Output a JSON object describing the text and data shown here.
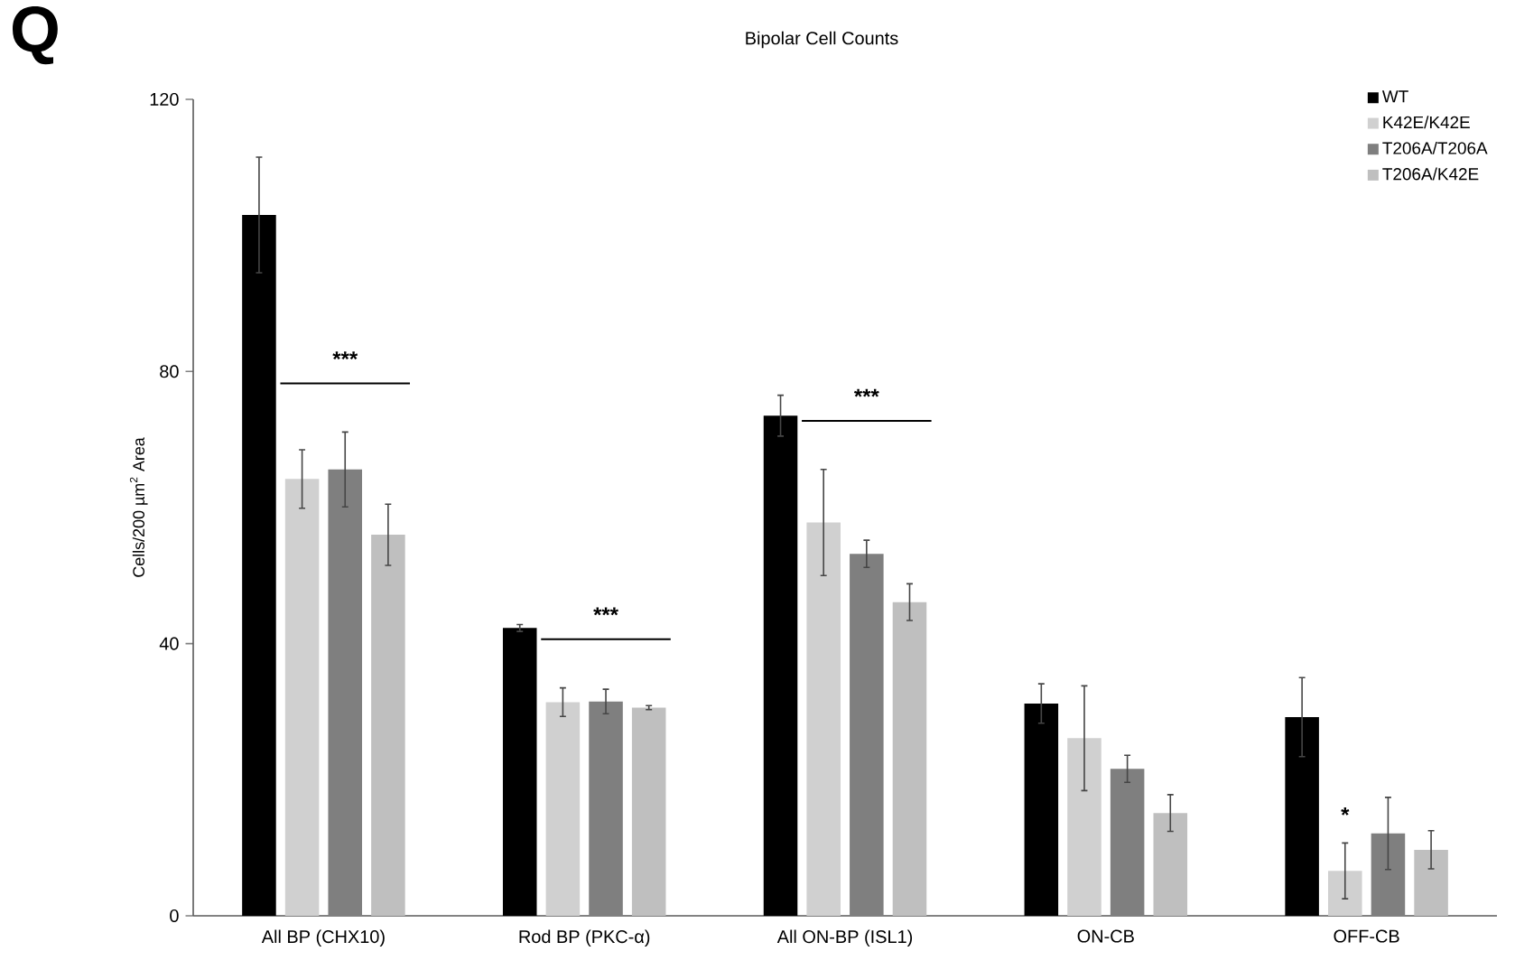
{
  "chart_data": {
    "type": "bar",
    "title": "Bipolar Cell Counts",
    "ylabel": "Cells/200 µm$^{2}$ Area",
    "categories": [
      "All BP (CHX10)",
      "Rod BP (PKC-α)",
      "All ON-BP (ISL1)",
      "ON-CB",
      "OFF-CB"
    ],
    "series": [
      {
        "name": "WT",
        "color": "#000000",
        "values": [
          103,
          42.3,
          73.5,
          31.2,
          29.2
        ],
        "errors": [
          8.5,
          0.5,
          3,
          2.9,
          5.8
        ]
      },
      {
        "name": "K42E/K42E",
        "color": "#d0d0d0",
        "values": [
          64.2,
          31.4,
          57.8,
          26.1,
          6.6
        ],
        "errors": [
          4.3,
          2.1,
          7.8,
          7.7,
          4.1
        ]
      },
      {
        "name": "T206A/T206A",
        "color": "#7f7f7f",
        "values": [
          65.6,
          31.5,
          53.2,
          21.6,
          12.1
        ],
        "errors": [
          5.5,
          1.8,
          2,
          2,
          5.3
        ]
      },
      {
        "name": "T206A/K42E",
        "color": "#bfbfbf",
        "values": [
          56,
          30.6,
          46.1,
          15.1,
          9.7
        ],
        "errors": [
          4.5,
          0.3,
          2.7,
          2.7,
          2.8
        ]
      }
    ],
    "ylim": [
      0,
      120
    ],
    "yticks": [
      0,
      40,
      80,
      120
    ],
    "legend": "top right",
    "annotations": [
      "Q",
      "***",
      "***",
      "***",
      "*"
    ]
  }
}
